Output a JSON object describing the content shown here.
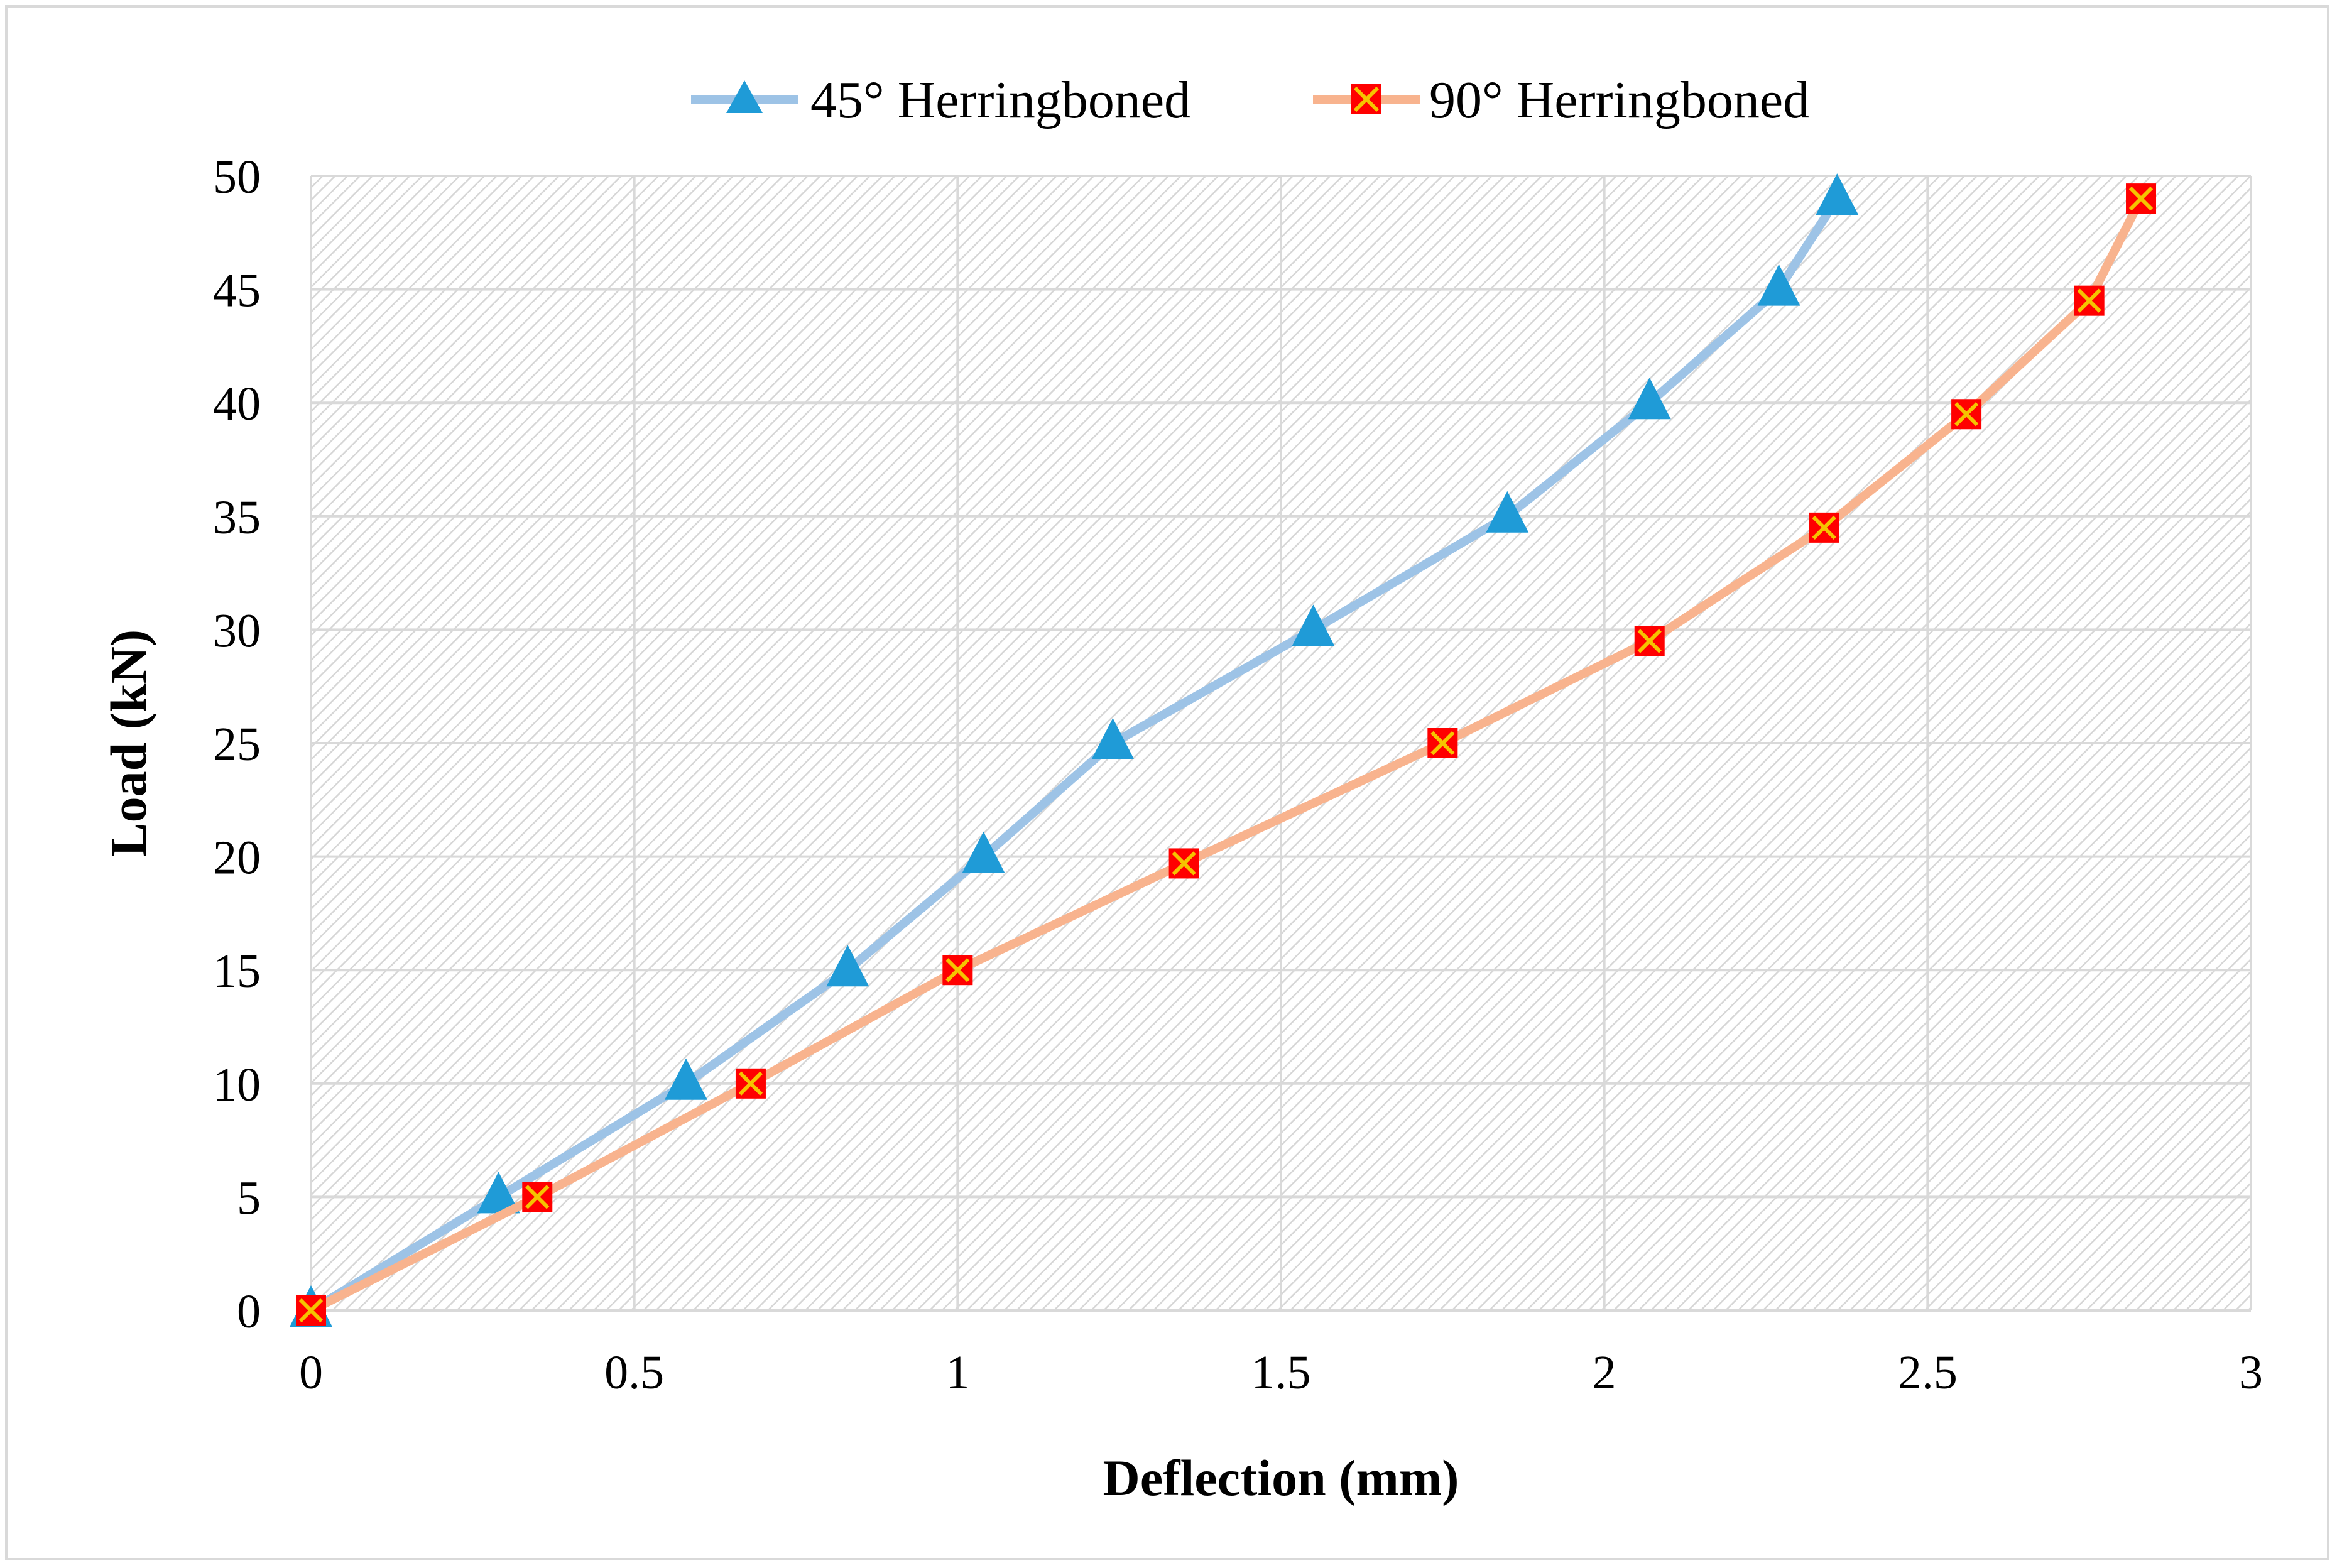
{
  "chart_data": {
    "type": "line",
    "title": "",
    "xlabel": "Deflection (mm)",
    "ylabel": "Load (kN)",
    "xlim": [
      0,
      3
    ],
    "ylim": [
      0,
      50
    ],
    "xticks": [
      0,
      0.5,
      1,
      1.5,
      2,
      2.5,
      3
    ],
    "yticks": [
      0,
      5,
      10,
      15,
      20,
      25,
      30,
      35,
      40,
      45,
      50
    ],
    "xtick_labels": [
      "0",
      "0.5",
      "1",
      "1.5",
      "2",
      "2.5",
      "3"
    ],
    "ytick_labels": [
      "0",
      "5",
      "10",
      "15",
      "20",
      "25",
      "30",
      "35",
      "40",
      "45",
      "50"
    ],
    "grid": true,
    "legend_position": "top-center",
    "series": [
      {
        "name": "45° Herringboned",
        "marker": "triangle",
        "line_color": "#9dc3e6",
        "marker_color": "#1f9bd7",
        "x": [
          0,
          0.29,
          0.58,
          0.83,
          1.04,
          1.24,
          1.55,
          1.85,
          2.07,
          2.27,
          2.36
        ],
        "y": [
          0,
          5,
          10,
          15,
          20,
          25,
          30,
          35,
          40,
          45,
          49
        ]
      },
      {
        "name": "90° Herringboned",
        "marker": "square-x",
        "line_color": "#f8b38e",
        "marker_color": "#ff0000",
        "marker_cross_color": "#f5c400",
        "x": [
          0,
          0.35,
          0.68,
          1.0,
          1.35,
          1.75,
          2.07,
          2.34,
          2.56,
          2.75,
          2.83
        ],
        "y": [
          0,
          5,
          10,
          15,
          19.7,
          25,
          29.5,
          34.5,
          39.5,
          44.5,
          49
        ]
      }
    ]
  }
}
